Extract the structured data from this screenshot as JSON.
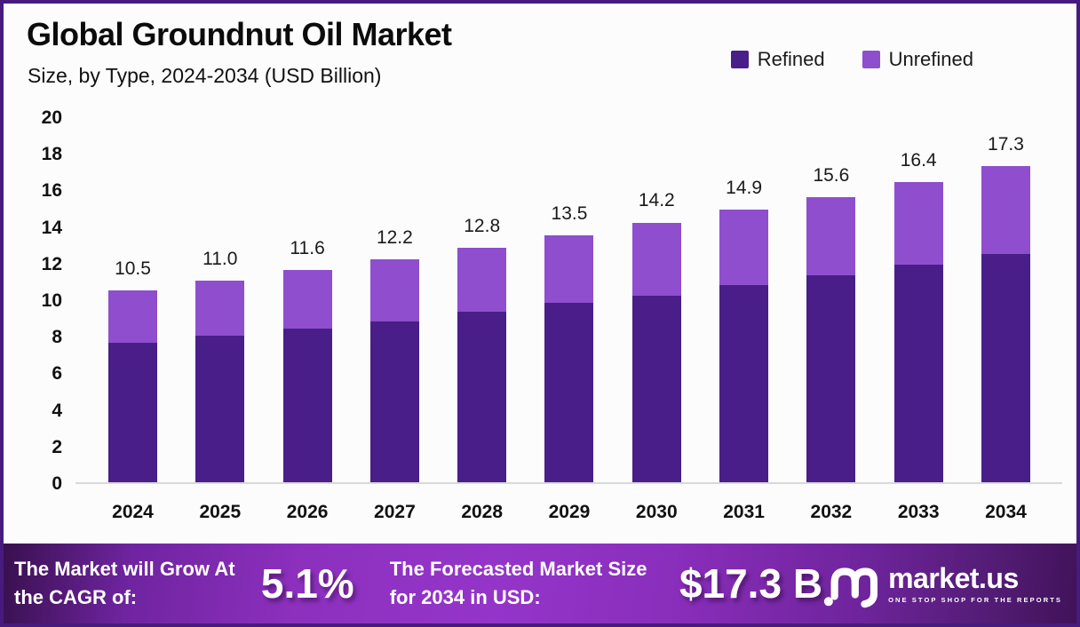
{
  "colors": {
    "border": "#471B7E",
    "background": "#FCFCFD",
    "refined": "#4A1E88",
    "unrefined": "#8E4ECD",
    "banner_gradient": [
      "#38104E",
      "#9435C9",
      "#411259"
    ],
    "axis_line": "#D9D9D9",
    "text": "#111111"
  },
  "chart_data": {
    "type": "bar",
    "stacked": true,
    "title": "Global Groundnut Oil Market",
    "subtitle": "Size, by Type, 2024-2034 (USD Billion)",
    "unit": "USD Billion",
    "categories": [
      "2024",
      "2025",
      "2026",
      "2027",
      "2028",
      "2029",
      "2030",
      "2031",
      "2032",
      "2033",
      "2034"
    ],
    "series": [
      {
        "name": "Refined",
        "color": "#4A1E88",
        "values": [
          7.6,
          8.0,
          8.4,
          8.8,
          9.3,
          9.8,
          10.2,
          10.8,
          11.3,
          11.9,
          12.5
        ]
      },
      {
        "name": "Unrefined",
        "color": "#8E4ECD",
        "values": [
          2.9,
          3.0,
          3.2,
          3.4,
          3.5,
          3.7,
          4.0,
          4.1,
          4.3,
          4.5,
          4.8
        ]
      }
    ],
    "totals": [
      10.5,
      11.0,
      11.6,
      12.2,
      12.8,
      13.5,
      14.2,
      14.9,
      15.6,
      16.4,
      17.3
    ],
    "total_labels": [
      "10.5",
      "11.0",
      "11.6",
      "12.2",
      "12.8",
      "13.5",
      "14.2",
      "14.9",
      "15.6",
      "16.4",
      "17.3"
    ],
    "ylim": [
      0,
      20
    ],
    "yticks": [
      0,
      2,
      4,
      6,
      8,
      10,
      12,
      14,
      16,
      18,
      20
    ],
    "grid": false,
    "legend_position": "top-right"
  },
  "footer": {
    "cagr_label": "The Market will Grow At the CAGR of:",
    "cagr_value": "5.1%",
    "forecast_label": "The Forecasted Market Size for 2034 in USD:",
    "forecast_value": "$17.3 B",
    "brand": {
      "name": "market.us",
      "tagline": "ONE STOP SHOP FOR THE REPORTS"
    }
  }
}
